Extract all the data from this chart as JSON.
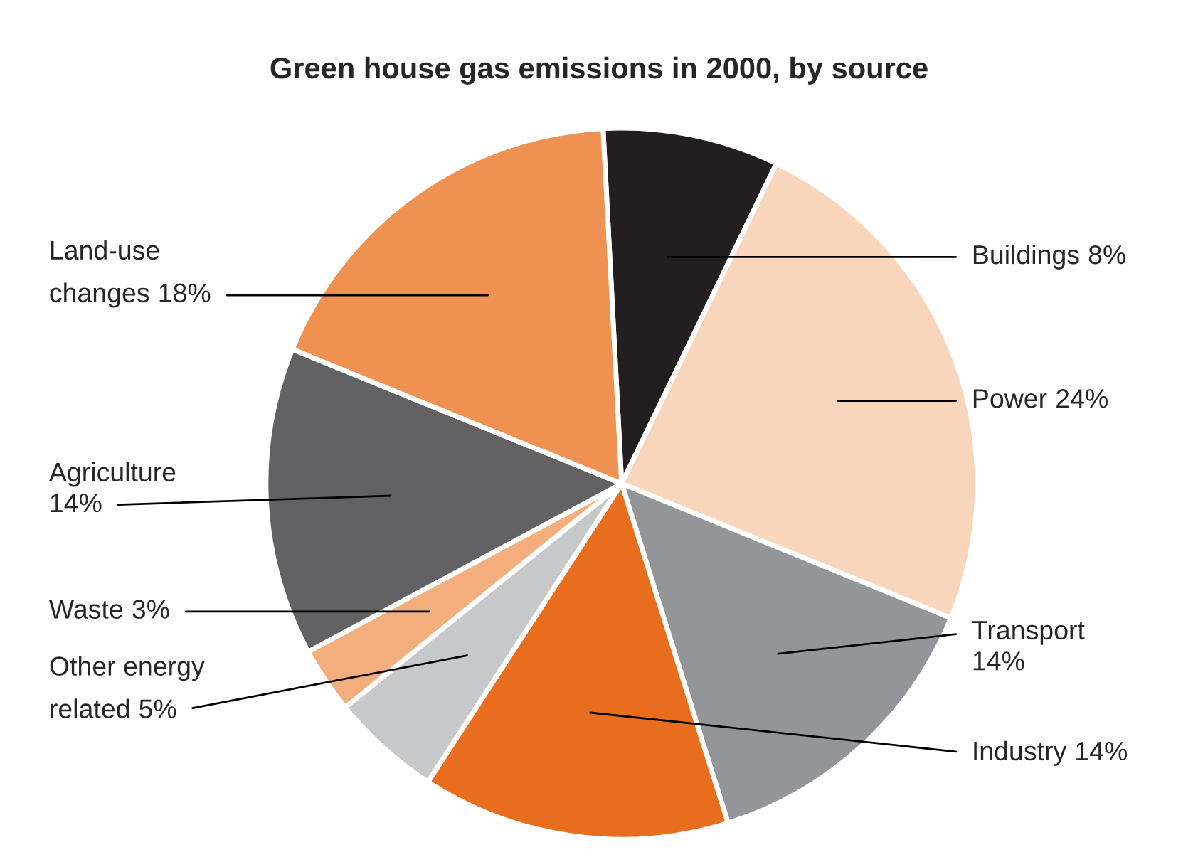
{
  "chart_data": {
    "type": "pie",
    "title": "Green house gas emissions in 2000, by source",
    "categories": [
      "Buildings",
      "Power",
      "Transport",
      "Industry",
      "Other energy related",
      "Waste",
      "Agriculture",
      "Land-use changes"
    ],
    "values": [
      8,
      24,
      14,
      14,
      5,
      3,
      14,
      18
    ],
    "value_labels": [
      "8%",
      "24%",
      "14%",
      "14%",
      "5%",
      "3%",
      "14%",
      "18%"
    ],
    "colors": [
      "#231f20",
      "#f9d5bb",
      "#939598",
      "#e96d1f",
      "#c7c8ca",
      "#f4ad7c",
      "#626264",
      "#ef9150"
    ]
  }
}
